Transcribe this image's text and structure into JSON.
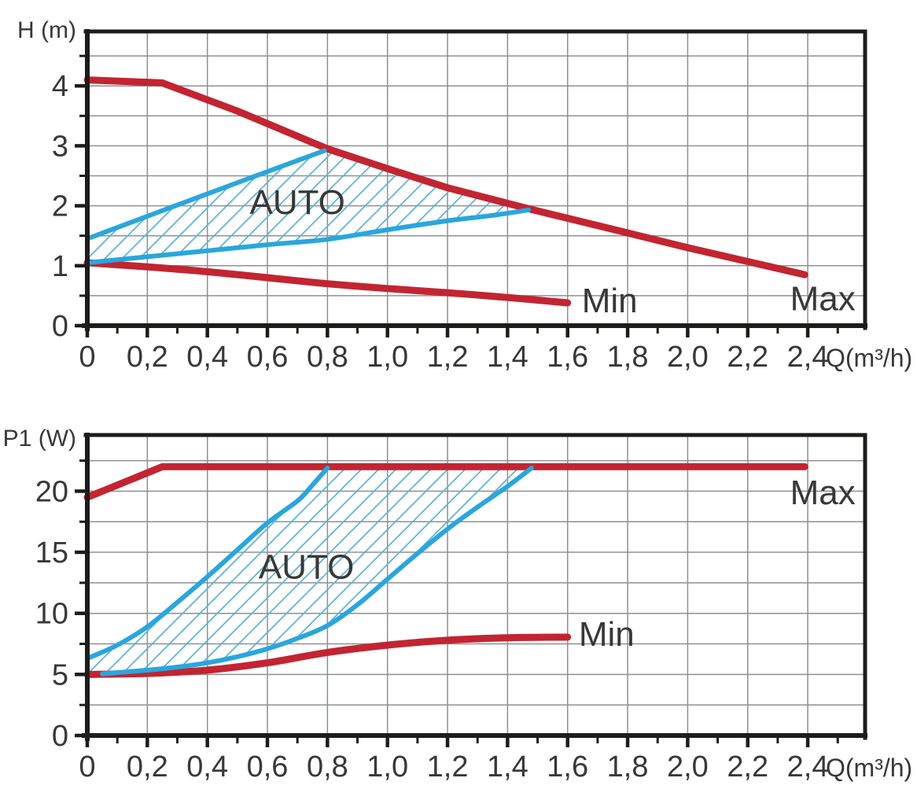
{
  "colors": {
    "curve_red": "#c22531",
    "curve_blue": "#2aa6dd",
    "hatch_blue": "#5db3d9",
    "grid_line": "#8d9093",
    "axis": "#1c1c1a",
    "text": "#383837",
    "background": "#ffffff"
  },
  "chart_data": [
    {
      "type": "line",
      "name": "head-vs-flow",
      "title": "",
      "xlabel": "Q(m³/h)",
      "ylabel": "H (m)",
      "x_range": [
        0,
        2.59
      ],
      "y_range": [
        0,
        4.92
      ],
      "grid": "on",
      "legend": "none",
      "x_ticks": {
        "values": [
          0,
          0.2,
          0.4,
          0.6,
          0.8,
          1.0,
          1.2,
          1.4,
          1.6,
          1.8,
          2.0,
          2.2,
          2.4
        ],
        "labels": [
          "0",
          "0,2",
          "0,4",
          "0,6",
          "0,8",
          "1,0",
          "1,2",
          "1,4",
          "1,6",
          "1,8",
          "2,0",
          "2,2",
          "2,4"
        ],
        "minor": [
          0.1,
          0.3,
          0.5,
          0.7,
          0.9,
          1.1,
          1.3,
          1.5,
          1.7,
          1.9,
          2.1,
          2.3,
          2.5
        ]
      },
      "y_ticks": {
        "values": [
          0,
          1,
          2,
          3,
          4
        ],
        "labels": [
          "0",
          "1",
          "2",
          "3",
          "4"
        ],
        "minor": [
          0.5,
          1.5,
          2.5,
          3.5,
          4.5
        ]
      },
      "series": [
        {
          "name": "max-curve",
          "color": "curve_red",
          "width": 9,
          "smooth": false,
          "points": [
            [
              0,
              4.1
            ],
            [
              0.25,
              4.05
            ],
            [
              0.5,
              3.58
            ],
            [
              0.8,
              2.95
            ],
            [
              1.0,
              2.62
            ],
            [
              1.2,
              2.3
            ],
            [
              1.47,
              1.95
            ],
            [
              1.7,
              1.67
            ],
            [
              2.0,
              1.3
            ],
            [
              2.39,
              0.85
            ]
          ],
          "label": {
            "text": "Max",
            "x": 2.45,
            "y": 0.45
          }
        },
        {
          "name": "min-curve",
          "color": "curve_red",
          "width": 9,
          "smooth": true,
          "points": [
            [
              0,
              1.05
            ],
            [
              0.2,
              0.98
            ],
            [
              0.4,
              0.9
            ],
            [
              0.6,
              0.8
            ],
            [
              0.8,
              0.7
            ],
            [
              1.0,
              0.62
            ],
            [
              1.2,
              0.55
            ],
            [
              1.4,
              0.47
            ],
            [
              1.6,
              0.38
            ]
          ],
          "label": {
            "text": "Min",
            "x": 1.74,
            "y": 0.42
          }
        },
        {
          "name": "auto-upper-boundary",
          "color": "curve_blue",
          "width": 6,
          "smooth": true,
          "points": [
            [
              0,
              1.45
            ],
            [
              0.4,
              2.2
            ],
            [
              0.79,
              2.92
            ]
          ]
        },
        {
          "name": "auto-lower-boundary",
          "color": "curve_blue",
          "width": 6,
          "smooth": true,
          "points": [
            [
              0,
              1.05
            ],
            [
              0.2,
              1.15
            ],
            [
              0.4,
              1.25
            ],
            [
              0.6,
              1.35
            ],
            [
              0.8,
              1.44
            ],
            [
              1.0,
              1.6
            ],
            [
              1.2,
              1.75
            ],
            [
              1.35,
              1.84
            ],
            [
              1.47,
              1.93
            ]
          ]
        }
      ],
      "region": {
        "name": "auto-region",
        "label": {
          "text": "AUTO",
          "x": 0.7,
          "y": 2.06
        },
        "vertices": [
          [
            0,
            1.05
          ],
          [
            0.2,
            1.15
          ],
          [
            0.4,
            1.25
          ],
          [
            0.6,
            1.35
          ],
          [
            0.8,
            1.44
          ],
          [
            1.0,
            1.6
          ],
          [
            1.2,
            1.75
          ],
          [
            1.35,
            1.84
          ],
          [
            1.47,
            1.93
          ],
          [
            1.2,
            2.3
          ],
          [
            1.0,
            2.62
          ],
          [
            0.79,
            2.92
          ],
          [
            0.4,
            2.2
          ],
          [
            0,
            1.45
          ]
        ]
      }
    },
    {
      "type": "line",
      "name": "power-vs-flow",
      "title": "",
      "xlabel": "Q(m³/h)",
      "ylabel": "P1 (W)",
      "x_range": [
        0,
        2.59
      ],
      "y_range": [
        0,
        24.6
      ],
      "grid": "on",
      "legend": "none",
      "x_ticks": {
        "values": [
          0,
          0.2,
          0.4,
          0.6,
          0.8,
          1.0,
          1.2,
          1.4,
          1.6,
          1.8,
          2.0,
          2.2,
          2.4
        ],
        "labels": [
          "0",
          "0,2",
          "0,4",
          "0,6",
          "0,8",
          "1,0",
          "1,2",
          "1,4",
          "1,6",
          "1,8",
          "2,0",
          "2,2",
          "2,4"
        ],
        "minor": [
          0.1,
          0.3,
          0.5,
          0.7,
          0.9,
          1.1,
          1.3,
          1.5,
          1.7,
          1.9,
          2.1,
          2.3,
          2.5
        ]
      },
      "y_ticks": {
        "values": [
          0,
          5,
          10,
          15,
          20
        ],
        "labels": [
          "0",
          "5",
          "10",
          "15",
          "20"
        ],
        "minor": [
          2.5,
          7.5,
          12.5,
          17.5,
          22.5
        ]
      },
      "series": [
        {
          "name": "max-curve",
          "color": "curve_red",
          "width": 9,
          "smooth": false,
          "points": [
            [
              0,
              19.5
            ],
            [
              0.25,
              22
            ],
            [
              2.39,
              22
            ]
          ],
          "label": {
            "text": "Max",
            "x": 2.45,
            "y": 19.9
          }
        },
        {
          "name": "min-curve",
          "color": "curve_red",
          "width": 9,
          "smooth": true,
          "points": [
            [
              0,
              5
            ],
            [
              0.2,
              5.08
            ],
            [
              0.4,
              5.35
            ],
            [
              0.6,
              5.95
            ],
            [
              0.8,
              6.8
            ],
            [
              1.0,
              7.4
            ],
            [
              1.2,
              7.8
            ],
            [
              1.4,
              8.0
            ],
            [
              1.6,
              8.05
            ]
          ],
          "label": {
            "text": "Min",
            "x": 1.73,
            "y": 8.3
          }
        },
        {
          "name": "auto-upper-boundary",
          "color": "curve_blue",
          "width": 6,
          "smooth": true,
          "points": [
            [
              0,
              6.3
            ],
            [
              0.1,
              7.4
            ],
            [
              0.2,
              8.9
            ],
            [
              0.3,
              10.9
            ],
            [
              0.4,
              13
            ],
            [
              0.5,
              15.2
            ],
            [
              0.6,
              17.4
            ],
            [
              0.7,
              19.2
            ],
            [
              0.75,
              20.5
            ],
            [
              0.8,
              21.9
            ]
          ]
        },
        {
          "name": "auto-lower-boundary",
          "color": "curve_blue",
          "width": 6,
          "smooth": true,
          "points": [
            [
              0.05,
              5.05
            ],
            [
              0.1,
              5.15
            ],
            [
              0.2,
              5.35
            ],
            [
              0.3,
              5.6
            ],
            [
              0.4,
              5.95
            ],
            [
              0.5,
              6.45
            ],
            [
              0.6,
              7.1
            ],
            [
              0.7,
              7.95
            ],
            [
              0.8,
              9.0
            ],
            [
              0.9,
              10.7
            ],
            [
              1.0,
              12.8
            ],
            [
              1.1,
              14.9
            ],
            [
              1.2,
              16.9
            ],
            [
              1.3,
              18.7
            ],
            [
              1.4,
              20.4
            ],
            [
              1.48,
              21.9
            ]
          ]
        }
      ],
      "region": {
        "name": "auto-region",
        "label": {
          "text": "AUTO",
          "x": 0.73,
          "y": 13.8
        },
        "vertices": [
          [
            0,
            5
          ],
          [
            0.05,
            5.05
          ],
          [
            0.1,
            5.15
          ],
          [
            0.2,
            5.35
          ],
          [
            0.3,
            5.6
          ],
          [
            0.4,
            5.95
          ],
          [
            0.5,
            6.45
          ],
          [
            0.6,
            7.1
          ],
          [
            0.7,
            7.95
          ],
          [
            0.8,
            9.0
          ],
          [
            0.9,
            10.7
          ],
          [
            1.0,
            12.8
          ],
          [
            1.1,
            14.9
          ],
          [
            1.2,
            16.9
          ],
          [
            1.3,
            18.7
          ],
          [
            1.4,
            20.4
          ],
          [
            1.48,
            21.9
          ],
          [
            0.8,
            21.9
          ],
          [
            0.75,
            20.5
          ],
          [
            0.7,
            19.2
          ],
          [
            0.6,
            17.4
          ],
          [
            0.5,
            15.2
          ],
          [
            0.4,
            13
          ],
          [
            0.3,
            10.9
          ],
          [
            0.2,
            8.9
          ],
          [
            0.1,
            7.4
          ],
          [
            0,
            6.3
          ]
        ]
      }
    }
  ]
}
